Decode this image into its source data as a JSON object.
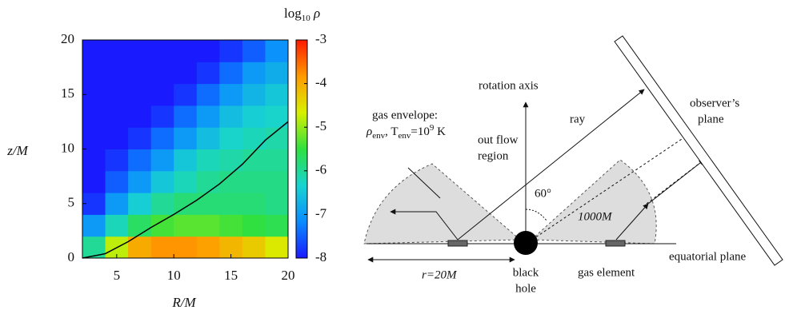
{
  "chart_data": {
    "type": "heatmap",
    "x_label": "R/M",
    "y_label": "z/M",
    "x": [
      3,
      5,
      7,
      9,
      11,
      13,
      15,
      17,
      19
    ],
    "y": [
      1,
      3,
      5,
      7,
      9,
      11,
      13,
      15,
      17,
      19
    ],
    "cell_width": 2,
    "cell_height": 2,
    "z": [
      [
        -6.0,
        -4.8,
        -4.0,
        -3.8,
        -3.8,
        -3.9,
        -4.1,
        -4.3,
        -4.6
      ],
      [
        -7.0,
        -6.2,
        -5.7,
        -5.4,
        -5.3,
        -5.3,
        -5.4,
        -5.5,
        -5.6
      ],
      [
        -7.8,
        -7.0,
        -6.4,
        -6.0,
        -5.8,
        -5.8,
        -5.8,
        -5.8,
        -5.9
      ],
      [
        -8,
        -7.5,
        -7.0,
        -6.5,
        -6.2,
        -6.0,
        -5.9,
        -5.9,
        -5.9
      ],
      [
        -8,
        -7.8,
        -7.4,
        -7.0,
        -6.5,
        -6.2,
        -6.1,
        -6.0,
        -6.0
      ],
      [
        -8,
        -8,
        -7.8,
        -7.4,
        -7.0,
        -6.6,
        -6.3,
        -6.2,
        -6.1
      ],
      [
        -8,
        -8,
        -8,
        -7.8,
        -7.4,
        -7.0,
        -6.6,
        -6.4,
        -6.3
      ],
      [
        -8,
        -8,
        -8,
        -8,
        -7.8,
        -7.4,
        -7.0,
        -6.7,
        -6.5
      ],
      [
        -8,
        -8,
        -8,
        -8,
        -8,
        -7.8,
        -7.4,
        -7.0,
        -6.8
      ],
      [
        -8,
        -8,
        -8,
        -8,
        -8,
        -8,
        -7.8,
        -7.5,
        -7.1
      ]
    ],
    "xlim": [
      2,
      20
    ],
    "ylim": [
      0,
      20
    ],
    "xticks": [
      5,
      10,
      15,
      20
    ],
    "yticks": [
      0,
      5,
      10,
      15,
      20
    ],
    "contour": {
      "color": "#000000",
      "x": [
        2,
        4,
        6,
        8,
        10,
        12,
        14,
        16,
        18,
        20
      ],
      "y": [
        0,
        0.4,
        1.5,
        2.8,
        4,
        5.3,
        6.8,
        8.6,
        10.8,
        12.5
      ]
    },
    "colorbar": {
      "label_parts": [
        "log",
        "10",
        " ρ"
      ],
      "lim": [
        -8,
        -3
      ],
      "ticks": [
        -3,
        -4,
        -5,
        -6,
        -7,
        -8
      ],
      "colors": [
        "#1a1aff",
        "#0a8cff",
        "#18d4d0",
        "#30e040",
        "#d8f000",
        "#ff9a00",
        "#ff1a00"
      ]
    }
  },
  "diagram": {
    "rotation_axis": "rotation axis",
    "ray": "ray",
    "observer_plane": [
      "observer’s",
      "plane"
    ],
    "envelope_title": "gas envelope:",
    "envelope_parts": [
      "ρ",
      "env",
      ", T",
      "env",
      "=10",
      "9",
      " K"
    ],
    "outflow": [
      "out flow",
      "region"
    ],
    "angle": "60°",
    "distance": "1000M",
    "radius": "r=20M",
    "black_hole": [
      "black",
      "hole"
    ],
    "gas_element": "gas element",
    "equatorial_plane": "equatorial plane"
  }
}
